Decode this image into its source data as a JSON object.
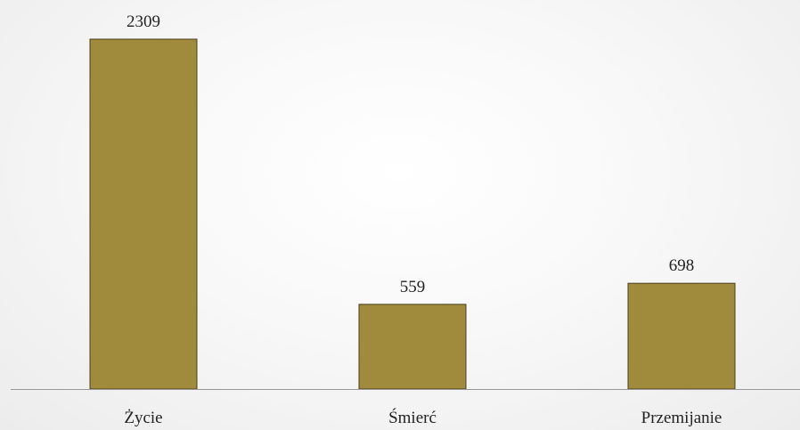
{
  "chart_data": {
    "type": "bar",
    "categories": [
      "Życie",
      "Śmierć",
      "Przemijanie"
    ],
    "values": [
      2309,
      559,
      698
    ],
    "title": "",
    "xlabel": "",
    "ylabel": "",
    "ylim": [
      0,
      2450
    ],
    "grid": false,
    "legend": "none",
    "data_labels": true,
    "colors": {
      "bar": "#a08a3c",
      "bar_edge": "#4a3f1a",
      "axis": "#999999",
      "text": "#222222"
    }
  }
}
